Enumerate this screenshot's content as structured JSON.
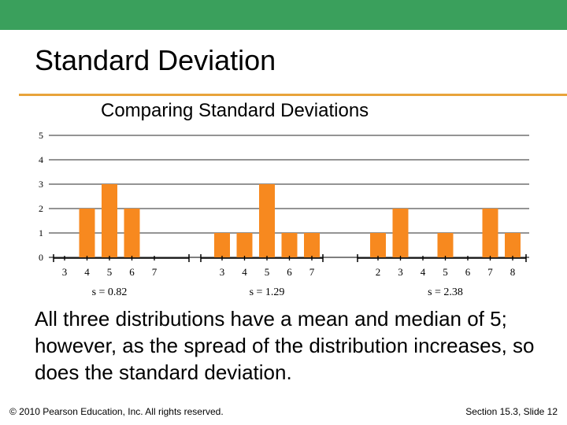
{
  "slide": {
    "title": "Standard Deviation",
    "body": "All three distributions have a mean and median of 5; however, as the spread of the distribution increases, so does the standard deviation.",
    "footer_left": "© 2010 Pearson Education, Inc. All rights reserved.",
    "footer_right": "Section 15.3, Slide 12",
    "colors": {
      "header_bar": "#3aa05c",
      "rule": "#e8a33a",
      "bars": "#f7891f"
    }
  },
  "chart_data": {
    "type": "bar",
    "title": "Comparing Standard Deviations",
    "ylim": [
      0,
      5
    ],
    "yticks": [
      0,
      1,
      2,
      3,
      4,
      5
    ],
    "grid": true,
    "panels": [
      {
        "categories": [
          "3",
          "4",
          "5",
          "6",
          "7"
        ],
        "values": [
          0,
          2,
          3,
          2,
          0
        ],
        "label": "s = 0.82"
      },
      {
        "categories": [
          "3",
          "4",
          "5",
          "6",
          "7"
        ],
        "values": [
          1,
          1,
          3,
          1,
          1
        ],
        "label": "s = 1.29"
      },
      {
        "categories": [
          "2",
          "3",
          "4",
          "5",
          "6",
          "7",
          "8"
        ],
        "values": [
          1,
          2,
          0,
          1,
          0,
          2,
          1
        ],
        "label": "s = 2.38"
      }
    ]
  }
}
